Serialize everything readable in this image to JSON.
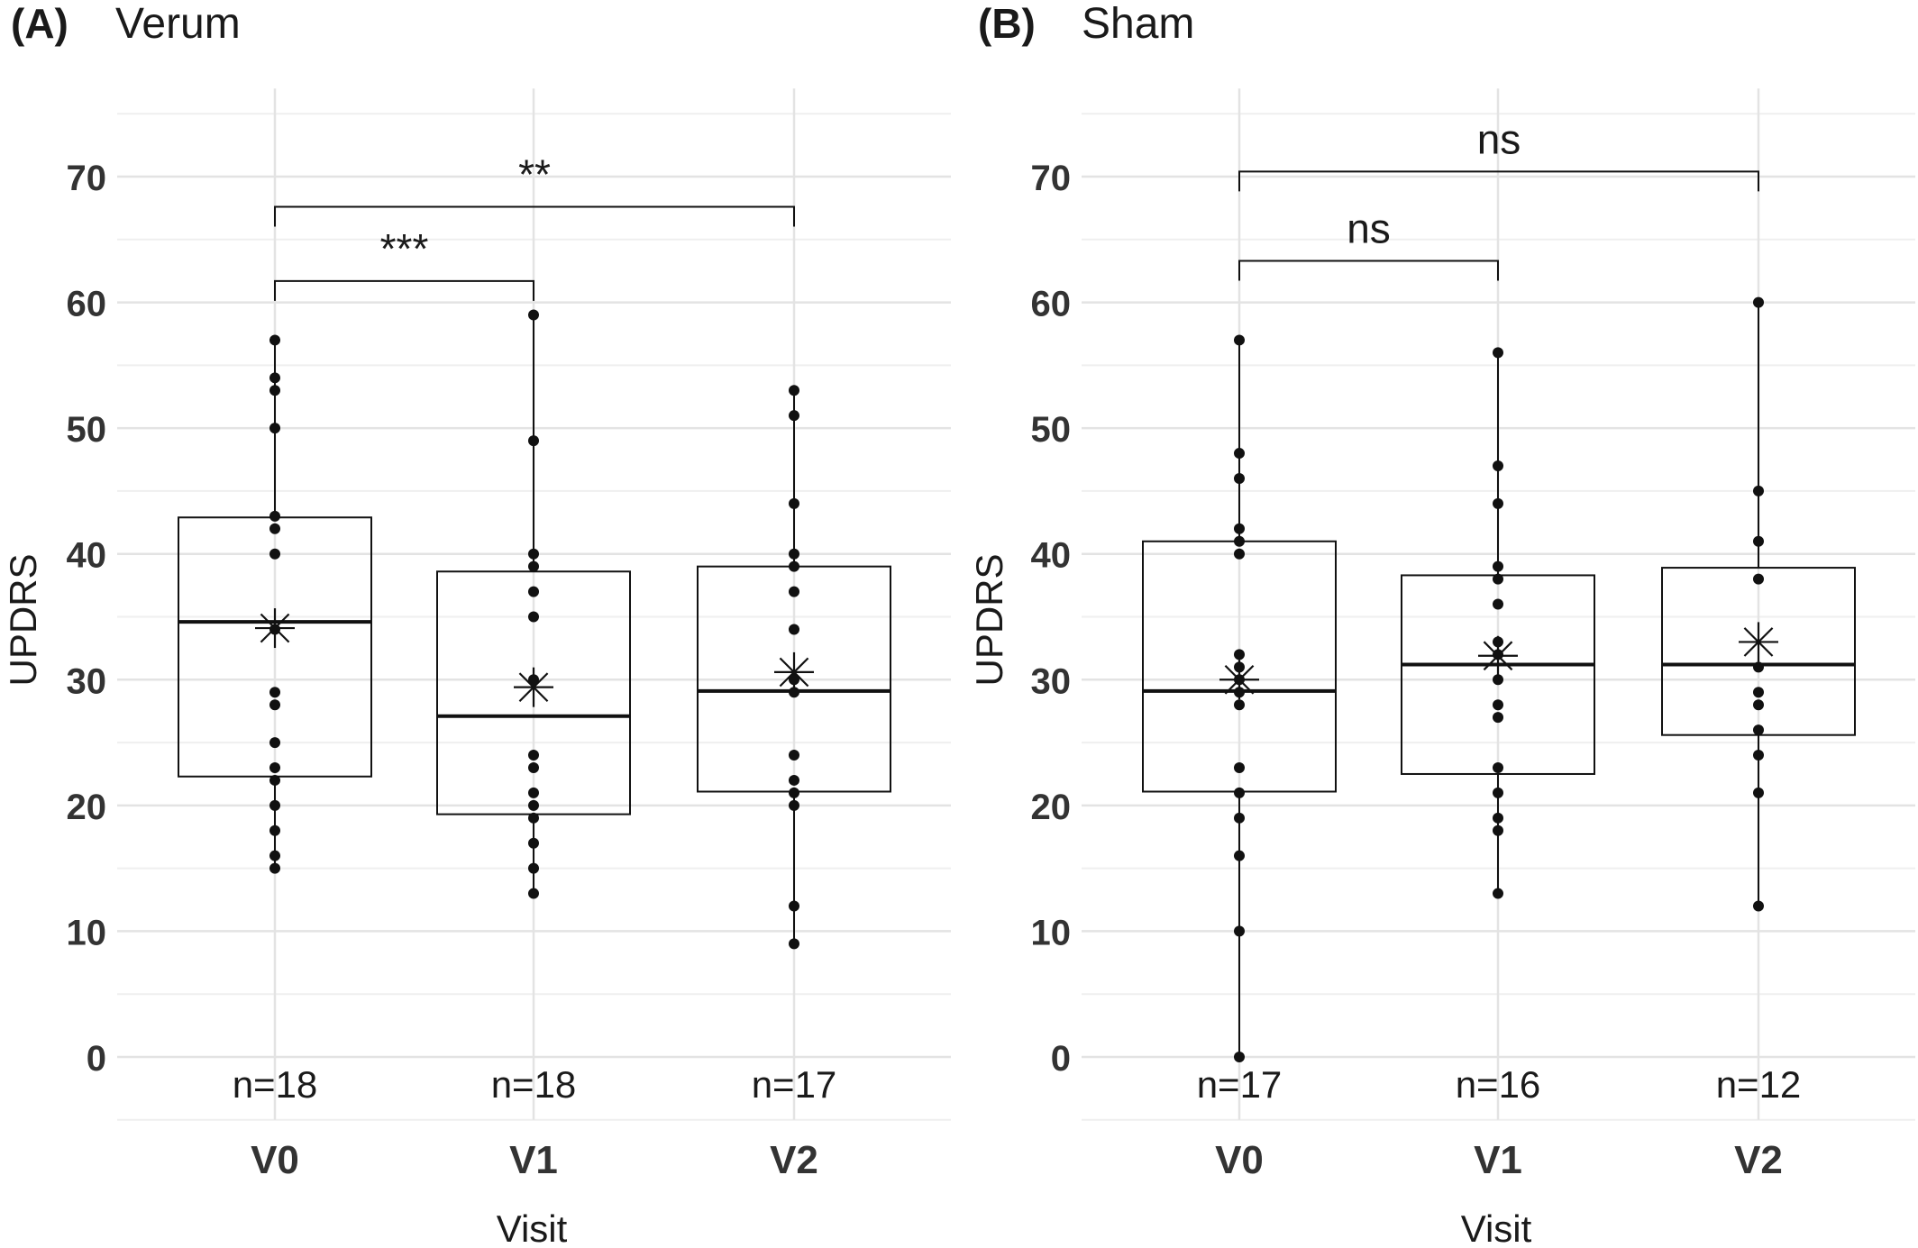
{
  "chart_data": [
    {
      "type": "box",
      "panel_label": "(A)",
      "title": "Verum",
      "xlabel": "Visit",
      "ylabel": "UPDRS",
      "categories": [
        "V0",
        "V1",
        "V2"
      ],
      "yticks": [
        0,
        10,
        20,
        30,
        40,
        50,
        60,
        70
      ],
      "ylim": [
        -5,
        77
      ],
      "grid": true,
      "counts": [
        "n=18",
        "n=18",
        "n=17"
      ],
      "boxes": [
        {
          "category": "V0",
          "q1": 22.3,
          "median": 34.6,
          "q3": 42.9,
          "whisker_low": 15,
          "whisker_high": 57,
          "mean": 34.1,
          "points": [
            15,
            16,
            18,
            20,
            22,
            23,
            25,
            28,
            29,
            34,
            40,
            42,
            43,
            50,
            53,
            54,
            57
          ]
        },
        {
          "category": "V1",
          "q1": 19.3,
          "median": 27.1,
          "q3": 38.6,
          "whisker_low": 13,
          "whisker_high": 59,
          "mean": 29.4,
          "points": [
            13,
            15,
            17,
            19,
            20,
            21,
            23,
            24,
            30,
            35,
            37,
            39,
            40,
            49,
            59
          ]
        },
        {
          "category": "V2",
          "q1": 21.1,
          "median": 29.1,
          "q3": 39.0,
          "whisker_low": 9,
          "whisker_high": 53,
          "mean": 30.6,
          "points": [
            9,
            12,
            20,
            21,
            22,
            24,
            29,
            30,
            34,
            37,
            39,
            40,
            44,
            51,
            53
          ]
        }
      ],
      "comparisons": [
        {
          "from": "V0",
          "to": "V1",
          "y": 61.7,
          "label": "***"
        },
        {
          "from": "V0",
          "to": "V2",
          "y": 67.6,
          "label": "**"
        }
      ]
    },
    {
      "type": "box",
      "panel_label": "(B)",
      "title": "Sham",
      "xlabel": "Visit",
      "ylabel": "UPDRS",
      "categories": [
        "V0",
        "V1",
        "V2"
      ],
      "yticks": [
        0,
        10,
        20,
        30,
        40,
        50,
        60,
        70
      ],
      "ylim": [
        -5,
        77
      ],
      "grid": true,
      "counts": [
        "n=17",
        "n=16",
        "n=12"
      ],
      "boxes": [
        {
          "category": "V0",
          "q1": 21.1,
          "median": 29.1,
          "q3": 41.0,
          "whisker_low": 0,
          "whisker_high": 57,
          "mean": 30.0,
          "points": [
            0,
            10,
            16,
            19,
            21,
            23,
            28,
            29,
            30,
            31,
            32,
            40,
            41,
            42,
            46,
            48,
            57
          ]
        },
        {
          "category": "V1",
          "q1": 22.5,
          "median": 31.2,
          "q3": 38.3,
          "whisker_low": 13,
          "whisker_high": 56,
          "mean": 31.9,
          "points": [
            13,
            18,
            19,
            21,
            23,
            27,
            28,
            30,
            32,
            33,
            36,
            38,
            39,
            44,
            47,
            56
          ]
        },
        {
          "category": "V2",
          "q1": 25.6,
          "median": 31.2,
          "q3": 38.9,
          "whisker_low": 12,
          "whisker_high": 60,
          "mean": 33.0,
          "points": [
            12,
            21,
            24,
            26,
            28,
            29,
            31,
            38,
            41,
            45,
            60
          ]
        }
      ],
      "comparisons": [
        {
          "from": "V0",
          "to": "V1",
          "y": 63.3,
          "label": "ns"
        },
        {
          "from": "V0",
          "to": "V2",
          "y": 70.4,
          "label": "ns"
        }
      ]
    }
  ]
}
